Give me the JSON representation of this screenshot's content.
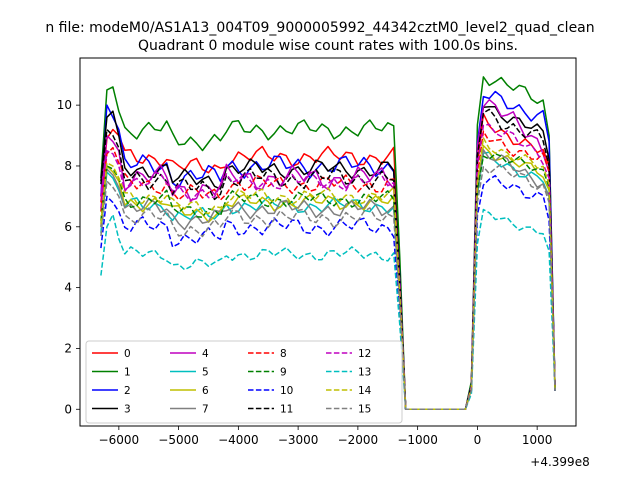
{
  "figure": {
    "suptitle": "n file: modeM0/AS1A13_004T09_9000005992_44342cztM0_level2_quad_clean"
  },
  "chart_data": {
    "type": "line",
    "title": "Quadrant 0 module wise count rates with 100.0s bins.",
    "xlabel": "",
    "ylabel": "",
    "x_offset_label": "+4.399e8",
    "xlim": [
      -6650,
      1650
    ],
    "ylim": [
      -0.55,
      11.55
    ],
    "xticks": [
      -6000,
      -5000,
      -4000,
      -3000,
      -2000,
      -1000,
      0,
      1000
    ],
    "xtick_labels": [
      "−6000",
      "−5000",
      "−4000",
      "−3000",
      "−2000",
      "−1000",
      "0",
      "1000"
    ],
    "yticks": [
      0,
      2,
      4,
      6,
      8,
      10
    ],
    "ytick_labels": [
      "0",
      "2",
      "4",
      "6",
      "8",
      "10"
    ],
    "grid": false,
    "legend_position": "lower-left",
    "legend_columns": 4,
    "x": [
      -6300,
      -6200,
      -6100,
      -6000,
      -5900,
      -5800,
      -5700,
      -5600,
      -5500,
      -5400,
      -5300,
      -5200,
      -5100,
      -5000,
      -4900,
      -4800,
      -4700,
      -4600,
      -4500,
      -4400,
      -4300,
      -4200,
      -4100,
      -4000,
      -3900,
      -3800,
      -3700,
      -3600,
      -3500,
      -3400,
      -3300,
      -3200,
      -3100,
      -3000,
      -2900,
      -2800,
      -2700,
      -2600,
      -2500,
      -2400,
      -2300,
      -2200,
      -2100,
      -2000,
      -1900,
      -1800,
      -1700,
      -1600,
      -1500,
      -1400,
      -1300,
      -1200,
      -1100,
      -1000,
      -900,
      -800,
      -700,
      -600,
      -500,
      -400,
      -300,
      -200,
      -100,
      0,
      100,
      200,
      300,
      400,
      500,
      600,
      700,
      800,
      900,
      1000,
      1100,
      1200,
      1300
    ],
    "series": [
      {
        "name": "0",
        "color": "#ff0000",
        "dash": false,
        "level": 8.3,
        "amp": 0.35,
        "start": 6.8,
        "head": [
          8.9,
          9.2,
          9.0
        ],
        "peak": 9.5,
        "tail": 8.3,
        "end": 8.0
      },
      {
        "name": "1",
        "color": "#008000",
        "dash": false,
        "level": 9.2,
        "amp": 0.35,
        "start": 7.6,
        "head": [
          10.5,
          10.6,
          9.8
        ],
        "peak": 11.0,
        "tail": 10.0,
        "end": 9.0
      },
      {
        "name": "2",
        "color": "#0000ff",
        "dash": false,
        "level": 8.0,
        "amp": 0.4,
        "start": 7.0,
        "head": [
          10.0,
          9.6,
          9.2
        ],
        "peak": 10.3,
        "tail": 9.6,
        "end": 8.8
      },
      {
        "name": "3",
        "color": "#000000",
        "dash": false,
        "level": 7.9,
        "amp": 0.35,
        "start": 7.5,
        "head": [
          9.6,
          9.8,
          9.0
        ],
        "peak": 10.1,
        "tail": 8.9,
        "end": 8.2
      },
      {
        "name": "4",
        "color": "#bf00bf",
        "dash": false,
        "level": 7.6,
        "amp": 0.45,
        "start": 7.0,
        "head": [
          9.0,
          8.8,
          8.5
        ],
        "peak": 10.2,
        "tail": 8.5,
        "end": 7.8
      },
      {
        "name": "5",
        "color": "#00bfbf",
        "dash": false,
        "level": 6.7,
        "amp": 0.3,
        "start": 5.8,
        "head": [
          7.8,
          7.6,
          7.2
        ],
        "peak": 8.3,
        "tail": 7.5,
        "end": 7.0
      },
      {
        "name": "6",
        "color": "#bfbf00",
        "dash": false,
        "level": 6.8,
        "amp": 0.3,
        "start": 6.0,
        "head": [
          8.0,
          7.8,
          7.5
        ],
        "peak": 8.6,
        "tail": 7.6,
        "end": 7.2
      },
      {
        "name": "7",
        "color": "#808080",
        "dash": false,
        "level": 6.6,
        "amp": 0.35,
        "start": 6.0,
        "head": [
          7.9,
          7.7,
          7.3
        ],
        "peak": 8.4,
        "tail": 7.4,
        "end": 7.0
      },
      {
        "name": "8",
        "color": "#ff0000",
        "dash": true,
        "level": 7.4,
        "amp": 0.35,
        "start": 6.5,
        "head": [
          8.4,
          8.6,
          8.1
        ],
        "peak": 9.0,
        "tail": 8.1,
        "end": 7.8
      },
      {
        "name": "9",
        "color": "#008000",
        "dash": true,
        "level": 6.9,
        "amp": 0.3,
        "start": 6.2,
        "head": [
          8.0,
          7.9,
          7.6
        ],
        "peak": 8.5,
        "tail": 7.7,
        "end": 7.3
      },
      {
        "name": "10",
        "color": "#0000ff",
        "dash": true,
        "level": 6.0,
        "amp": 0.35,
        "start": 5.3,
        "head": [
          7.0,
          6.8,
          6.5
        ],
        "peak": 7.5,
        "tail": 7.0,
        "end": 6.2
      },
      {
        "name": "11",
        "color": "#000000",
        "dash": true,
        "level": 7.6,
        "amp": 0.4,
        "start": 7.4,
        "head": [
          9.2,
          9.0,
          8.6
        ],
        "peak": 9.8,
        "tail": 8.7,
        "end": 8.0
      },
      {
        "name": "12",
        "color": "#bf00bf",
        "dash": true,
        "level": 7.5,
        "amp": 0.35,
        "start": 6.6,
        "head": [
          8.5,
          8.4,
          8.0
        ],
        "peak": 9.4,
        "tail": 8.2,
        "end": 7.6
      },
      {
        "name": "13",
        "color": "#00bfbf",
        "dash": true,
        "level": 5.1,
        "amp": 0.25,
        "start": 4.4,
        "head": [
          6.0,
          6.4,
          5.6
        ],
        "peak": 6.4,
        "tail": 5.8,
        "end": 5.2
      },
      {
        "name": "14",
        "color": "#bfbf00",
        "dash": true,
        "level": 7.0,
        "amp": 0.3,
        "start": 6.1,
        "head": [
          8.1,
          8.0,
          7.6
        ],
        "peak": 8.8,
        "tail": 7.8,
        "end": 7.4
      },
      {
        "name": "15",
        "color": "#808080",
        "dash": true,
        "level": 6.3,
        "amp": 0.35,
        "start": 5.7,
        "head": [
          7.5,
          7.3,
          7.0
        ],
        "peak": 8.0,
        "tail": 7.3,
        "end": 6.8
      }
    ]
  }
}
